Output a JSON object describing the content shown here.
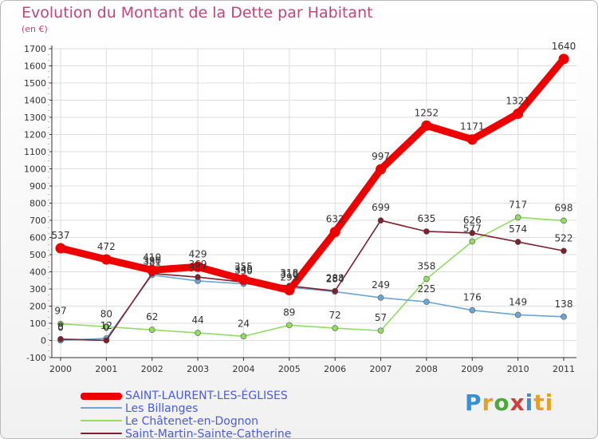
{
  "header": {
    "title": "Evolution du Montant de la Dette par Habitant",
    "subtitle": "(en €)"
  },
  "logo": {
    "text": "Proxiti",
    "letters": [
      "P",
      "r",
      "o",
      "x",
      "i",
      "ti"
    ]
  },
  "chart_data": {
    "type": "line",
    "title": "Evolution du Montant de la Dette par Habitant",
    "ylabel": "(en €)",
    "xlabel": "",
    "x": [
      "2000",
      "2001",
      "2002",
      "2003",
      "2004",
      "2005",
      "2006",
      "2007",
      "2008",
      "2009",
      "2010",
      "2011"
    ],
    "ylim": [
      -100,
      1700
    ],
    "yticks": [
      -100,
      0,
      100,
      200,
      300,
      400,
      500,
      600,
      700,
      800,
      900,
      1000,
      1100,
      1200,
      1300,
      1400,
      1500,
      1600,
      1700
    ],
    "grid": true,
    "legend": "bottom-left",
    "series": [
      {
        "name": "SAINT-LAURENT-LES-ÉGLISES",
        "color": "#ee0000",
        "values": [
          537,
          472,
          410,
          429,
          355,
          293,
          632,
          997,
          1252,
          1171,
          1321,
          1640
        ],
        "labels": [
          "537",
          "472",
          "410",
          "429",
          "355",
          "293",
          "632",
          "997",
          "1252",
          "1171",
          "1321",
          "1640"
        ]
      },
      {
        "name": "Les Billanges",
        "color": "#6ba5d6",
        "values": [
          0,
          12,
          381,
          347,
          330,
          310,
          284,
          249,
          225,
          176,
          149,
          138
        ],
        "labels": [
          "0",
          "12",
          "381",
          "347",
          "330",
          "310",
          "284",
          "249",
          "225",
          "176",
          "149",
          "138"
        ]
      },
      {
        "name": "Le Châtenet-en-Dognon",
        "color": "#92dc62",
        "values": [
          97,
          80,
          62,
          44,
          24,
          89,
          72,
          57,
          358,
          577,
          717,
          698
        ],
        "labels": [
          "97",
          "80",
          "62",
          "44",
          "24",
          "89",
          "72",
          "57",
          "358",
          "577",
          "717",
          "698"
        ]
      },
      {
        "name": "Saint-Martin-Sainte-Catherine",
        "color": "#7d1f2c",
        "values": [
          8,
          0,
          390,
          369,
          340,
          318,
          288,
          699,
          635,
          626,
          574,
          522
        ],
        "labels": [
          "8",
          "0",
          "390",
          "369",
          "340",
          "318",
          "288",
          "699",
          "635",
          "626",
          "574",
          "522"
        ]
      }
    ]
  }
}
